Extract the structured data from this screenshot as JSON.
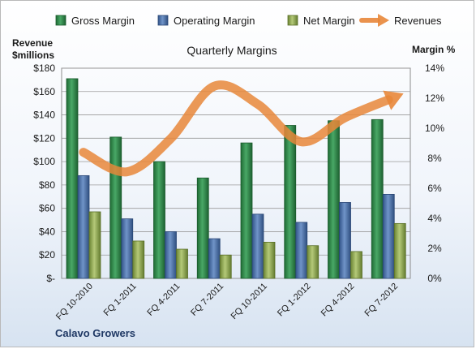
{
  "chart_data": {
    "type": "bar",
    "title": "Quarterly Margins",
    "left_axis_title": [
      "Revenue",
      "$millions"
    ],
    "right_axis_title": "Margin %",
    "footer": "Calavo Growers",
    "categories": [
      "FQ 10-2010",
      "FQ 1-2011",
      "FQ 4-2011",
      "FQ 7-2011",
      "FQ 10-2011",
      "FQ 1-2012",
      "FQ 4-2012",
      "FQ 7-2012"
    ],
    "left_ylim": [
      0,
      180
    ],
    "left_ticks": [
      "$-",
      "$20",
      "$40",
      "$60",
      "$80",
      "$100",
      "$120",
      "$140",
      "$160",
      "$180"
    ],
    "right_ylim": [
      0,
      14
    ],
    "right_ticks": [
      "0%",
      "2%",
      "4%",
      "6%",
      "8%",
      "10%",
      "12%",
      "14%"
    ],
    "series": [
      {
        "name": "Gross Margin",
        "type": "bar",
        "color": "#2f8a4a",
        "values": [
          171,
          121,
          100,
          86,
          116,
          131,
          135,
          136
        ]
      },
      {
        "name": "Operating Margin",
        "type": "bar",
        "color": "#4a6fa8",
        "values": [
          88,
          51,
          40,
          34,
          55,
          48,
          65,
          72
        ]
      },
      {
        "name": "Net Margin",
        "type": "bar",
        "color": "#8faa50",
        "values": [
          57,
          32,
          25,
          20,
          31,
          28,
          23,
          47
        ]
      },
      {
        "name": "Revenues",
        "type": "line",
        "axis": "right",
        "color": "#e8873a",
        "values": [
          8.4,
          7.1,
          9.3,
          12.8,
          11.6,
          9.1,
          10.7,
          11.9
        ]
      }
    ],
    "grid": true,
    "legend_position": "top"
  }
}
